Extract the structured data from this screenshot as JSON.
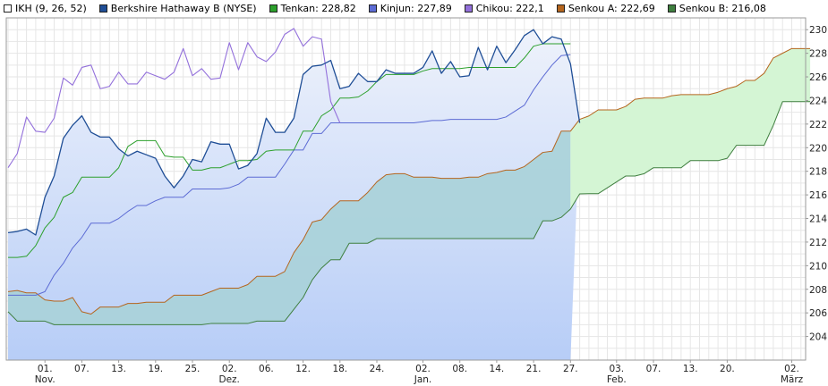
{
  "chart_data": {
    "type": "line",
    "title": "",
    "legend": [
      {
        "label": "IKH (9, 26, 52)",
        "color": "#ffffff"
      },
      {
        "label": "Berkshire Hathaway B (NYSE)",
        "color": "#1f4e96"
      },
      {
        "label": "Tenkan: 228,82",
        "color": "#2ca02c"
      },
      {
        "label": "Kinjun: 227,89",
        "color": "#5c6bd4"
      },
      {
        "label": "Chikou: 222,1",
        "color": "#9370db"
      },
      {
        "label": "Senkou A: 222,69",
        "color": "#b5651d"
      },
      {
        "label": "Senkou B: 216,08",
        "color": "#3f7f3f"
      }
    ],
    "ylim": [
      202,
      231
    ],
    "y_ticks": [
      204,
      206,
      208,
      210,
      212,
      214,
      216,
      218,
      220,
      222,
      224,
      226,
      228,
      230
    ],
    "x_ticks": [
      {
        "i": 4,
        "day": "01.",
        "month": "Nov."
      },
      {
        "i": 8,
        "day": "07.",
        "month": ""
      },
      {
        "i": 12,
        "day": "13.",
        "month": ""
      },
      {
        "i": 16,
        "day": "19.",
        "month": ""
      },
      {
        "i": 20,
        "day": "25.",
        "month": ""
      },
      {
        "i": 24,
        "day": "02.",
        "month": "Dez."
      },
      {
        "i": 28,
        "day": "06.",
        "month": ""
      },
      {
        "i": 32,
        "day": "12.",
        "month": ""
      },
      {
        "i": 36,
        "day": "18.",
        "month": ""
      },
      {
        "i": 40,
        "day": "24.",
        "month": ""
      },
      {
        "i": 45,
        "day": "02.",
        "month": "Jan."
      },
      {
        "i": 49,
        "day": "08.",
        "month": ""
      },
      {
        "i": 53,
        "day": "14.",
        "month": ""
      },
      {
        "i": 57,
        "day": "21.",
        "month": ""
      },
      {
        "i": 61,
        "day": "27.",
        "month": ""
      },
      {
        "i": 66,
        "day": "03.",
        "month": "Feb."
      },
      {
        "i": 70,
        "day": "07.",
        "month": ""
      },
      {
        "i": 74,
        "day": "13.",
        "month": ""
      },
      {
        "i": 78,
        "day": "20.",
        "month": ""
      },
      {
        "i": 85,
        "day": "02.",
        "month": "März"
      }
    ],
    "price_end_index": 61,
    "series": [
      {
        "name": "Berkshire Hathaway B (NYSE)",
        "color": "#1f4e96",
        "start": 0,
        "values": [
          212.8,
          212.9,
          213.1,
          212.6,
          215.8,
          217.6,
          220.8,
          221.9,
          222.7,
          221.3,
          220.9,
          220.9,
          219.9,
          219.3,
          219.7,
          219.4,
          219.1,
          217.6,
          216.6,
          217.6,
          219.0,
          218.8,
          220.5,
          220.3,
          220.3,
          218.2,
          218.5,
          219.5,
          222.5,
          221.3,
          221.3,
          222.5,
          226.2,
          226.9,
          227.0,
          227.4,
          225.0,
          225.2,
          226.3,
          225.6,
          225.6,
          226.6,
          226.3,
          226.3,
          226.3,
          226.8,
          228.2,
          226.3,
          227.3,
          226.0,
          226.1,
          228.5,
          226.6,
          228.6,
          227.2,
          228.3,
          229.5,
          230.0,
          228.8,
          229.4,
          229.2,
          227.1,
          222.1
        ]
      },
      {
        "name": "Tenkan",
        "color": "#2ca02c",
        "start": 0,
        "values": [
          210.7,
          210.7,
          210.8,
          211.7,
          213.2,
          214.1,
          215.8,
          216.2,
          217.5,
          217.5,
          217.5,
          217.5,
          218.3,
          220.1,
          220.6,
          220.6,
          220.6,
          219.3,
          219.2,
          219.2,
          218.1,
          218.1,
          218.3,
          218.3,
          218.6,
          218.9,
          218.9,
          219.0,
          219.7,
          219.8,
          219.8,
          219.8,
          221.4,
          221.4,
          222.7,
          223.2,
          224.2,
          224.2,
          224.3,
          224.8,
          225.6,
          226.2,
          226.2,
          226.2,
          226.2,
          226.5,
          226.7,
          226.7,
          226.7,
          226.7,
          226.8,
          226.8,
          226.8,
          226.8,
          226.8,
          226.8,
          227.6,
          228.6,
          228.8,
          228.8,
          228.8,
          228.8
        ]
      },
      {
        "name": "Kinjun",
        "color": "#5c6bd4",
        "start": 0,
        "values": [
          207.5,
          207.5,
          207.5,
          207.5,
          207.8,
          209.2,
          210.2,
          211.5,
          212.4,
          213.6,
          213.6,
          213.6,
          214.0,
          214.6,
          215.1,
          215.1,
          215.5,
          215.8,
          215.8,
          215.8,
          216.5,
          216.5,
          216.5,
          216.5,
          216.6,
          216.9,
          217.5,
          217.5,
          217.5,
          217.5,
          218.6,
          219.8,
          219.8,
          221.2,
          221.2,
          222.1,
          222.1,
          222.1,
          222.1,
          222.1,
          222.1,
          222.1,
          222.1,
          222.1,
          222.1,
          222.2,
          222.3,
          222.3,
          222.4,
          222.4,
          222.4,
          222.4,
          222.4,
          222.4,
          222.6,
          223.1,
          223.6,
          224.9,
          226.0,
          227.0,
          227.8,
          227.89
        ]
      },
      {
        "name": "Chikou",
        "color": "#9370db",
        "start": 0,
        "values": [
          218.3,
          219.5,
          222.6,
          221.4,
          221.3,
          222.5,
          225.9,
          225.3,
          226.8,
          227.0,
          225.0,
          225.2,
          226.4,
          225.4,
          225.4,
          226.4,
          226.1,
          225.8,
          226.4,
          228.4,
          226.1,
          226.7,
          225.8,
          225.9,
          228.9,
          226.6,
          228.9,
          227.7,
          227.3,
          228.1,
          229.6,
          230.1,
          228.6,
          229.4,
          229.2,
          223.9,
          222.1
        ]
      },
      {
        "name": "Senkou A",
        "color": "#b5651d",
        "start": 0,
        "values": [
          207.8,
          207.9,
          207.7,
          207.7,
          207.1,
          207.0,
          207.0,
          207.3,
          206.1,
          205.9,
          206.5,
          206.5,
          206.5,
          206.8,
          206.8,
          206.9,
          206.9,
          206.9,
          207.5,
          207.5,
          207.5,
          207.5,
          207.8,
          208.1,
          208.1,
          208.1,
          208.4,
          209.1,
          209.1,
          209.1,
          209.5,
          211.1,
          212.2,
          213.7,
          213.9,
          214.8,
          215.5,
          215.5,
          215.5,
          216.2,
          217.1,
          217.7,
          217.8,
          217.8,
          217.5,
          217.5,
          217.5,
          217.4,
          217.4,
          217.4,
          217.5,
          217.5,
          217.8,
          217.9,
          218.1,
          218.1,
          218.4,
          219.0,
          219.6,
          219.7,
          221.4,
          221.4,
          222.4,
          222.69,
          223.2,
          223.2,
          223.2,
          223.5,
          224.1,
          224.2,
          224.2,
          224.2,
          224.4,
          224.5,
          224.5,
          224.5,
          224.5,
          224.7,
          225.0,
          225.2,
          225.7,
          225.7,
          226.3,
          227.6,
          228.0,
          228.4,
          228.4,
          228.4
        ]
      },
      {
        "name": "Senkou B",
        "color": "#3f7f3f",
        "start": 0,
        "values": [
          206.1,
          205.3,
          205.3,
          205.3,
          205.3,
          205.0,
          205.0,
          205.0,
          205.0,
          205.0,
          205.0,
          205.0,
          205.0,
          205.0,
          205.0,
          205.0,
          205.0,
          205.0,
          205.0,
          205.0,
          205.0,
          205.0,
          205.1,
          205.1,
          205.1,
          205.1,
          205.1,
          205.3,
          205.3,
          205.3,
          205.3,
          206.3,
          207.3,
          208.8,
          209.8,
          210.5,
          210.5,
          211.9,
          211.9,
          211.9,
          212.3,
          212.3,
          212.3,
          212.3,
          212.3,
          212.3,
          212.3,
          212.3,
          212.3,
          212.3,
          212.3,
          212.3,
          212.3,
          212.3,
          212.3,
          212.3,
          212.3,
          212.3,
          213.8,
          213.8,
          214.1,
          214.8,
          216.08,
          216.1,
          216.1,
          216.6,
          217.1,
          217.6,
          217.6,
          217.8,
          218.3,
          218.3,
          218.3,
          218.3,
          218.9,
          218.9,
          218.9,
          218.9,
          219.1,
          220.2,
          220.2,
          220.2,
          220.2,
          221.9,
          223.9,
          223.9,
          223.9,
          223.9
        ]
      }
    ]
  }
}
